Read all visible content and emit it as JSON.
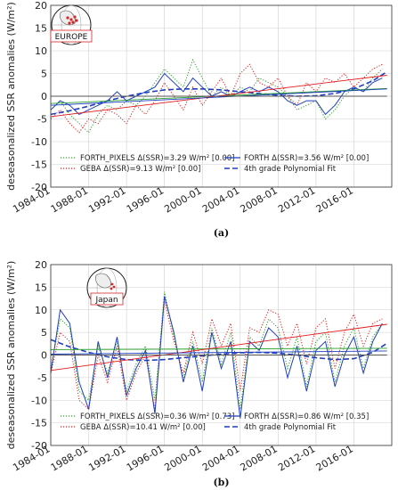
{
  "chart_data": [
    {
      "type": "line",
      "panel_label": "(a)",
      "region_label": "EUROPE",
      "ylabel": "deseasonalized SSR anomalies (W/m²)",
      "ylim": [
        -20,
        20
      ],
      "yticks": [
        20,
        15,
        10,
        5,
        0,
        -5,
        -10,
        -15,
        -20
      ],
      "xlim": [
        1984,
        2020
      ],
      "xticks": [
        "1984-01",
        "1988-01",
        "1992-01",
        "1996-01",
        "2000-01",
        "2004-01",
        "2008-01",
        "2012-01",
        "2016-01"
      ],
      "grid": true,
      "legend_position": "bottom",
      "legend": [
        {
          "text": "FORTH_PIXELS Δ(SSR)=3.29 W/m² [0.00]",
          "color": "#2ca02c",
          "style": "dotted"
        },
        {
          "text": "GEBA Δ(SSR)=9.13 W/m² [0.00]",
          "color": "#e41a1c",
          "style": "dotted"
        },
        {
          "text": "FORTH Δ(SSR)=3.56 W/m² [0.00]",
          "color": "#1f3fbf",
          "style": "solid"
        },
        {
          "text": "4th grade Polynomial Fit",
          "color": "#1f3fbf",
          "style": "dashed"
        }
      ],
      "series": [
        {
          "name": "FORTH_PIXELS",
          "color": "#2ca02c",
          "style": "dotted",
          "x": [
            1984,
            1985,
            1986,
            1987,
            1988,
            1989,
            1990,
            1991,
            1992,
            1993,
            1994,
            1995,
            1996,
            1997,
            1998,
            1999,
            2000,
            2001,
            2002,
            2003,
            2004,
            2005,
            2006,
            2007,
            2008,
            2009,
            2010,
            2011,
            2012,
            2013,
            2014,
            2015,
            2016,
            2017,
            2018,
            2019
          ],
          "y": [
            -3,
            -1,
            -4,
            -6,
            -8,
            -4,
            -2,
            -3,
            -1,
            -2,
            0,
            3,
            6,
            4,
            2,
            8,
            4,
            0,
            2,
            0,
            2,
            1,
            4,
            3,
            2,
            0,
            -3,
            -2,
            -1,
            -5,
            -3,
            0,
            2,
            1,
            4,
            6
          ]
        },
        {
          "name": "GEBA",
          "color": "#e41a1c",
          "style": "dotted",
          "x": [
            1984,
            1985,
            1986,
            1987,
            1988,
            1989,
            1990,
            1991,
            1992,
            1993,
            1994,
            1995,
            1996,
            1997,
            1998,
            1999,
            2000,
            2001,
            2002,
            2003,
            2004,
            2005,
            2006,
            2007,
            2008,
            2009,
            2010,
            2011,
            2012,
            2013,
            2014,
            2015,
            2016,
            2017,
            2018,
            2019
          ],
          "y": [
            -5,
            -3,
            -6,
            -8,
            -5,
            -6,
            -3,
            -4,
            -6,
            -2,
            -4,
            -1,
            3,
            0,
            -3,
            2,
            -2,
            1,
            4,
            0,
            5,
            7,
            3,
            2,
            4,
            0,
            -2,
            3,
            1,
            4,
            3,
            5,
            2,
            4,
            6,
            7
          ]
        },
        {
          "name": "FORTH",
          "color": "#1f3fbf",
          "style": "solid",
          "x": [
            1984,
            1985,
            1986,
            1987,
            1988,
            1989,
            1990,
            1991,
            1992,
            1993,
            1994,
            1995,
            1996,
            1997,
            1998,
            1999,
            2000,
            2001,
            2002,
            2003,
            2004,
            2005,
            2006,
            2007,
            2008,
            2009,
            2010,
            2011,
            2012,
            2013,
            2014,
            2015,
            2016,
            2017,
            2018,
            2019
          ],
          "y": [
            -3,
            -1,
            -2,
            -4,
            -3,
            -2,
            -1,
            1,
            -1,
            0,
            1,
            2,
            5,
            3,
            1,
            4,
            2,
            0,
            1,
            0,
            1,
            2,
            1,
            2,
            1,
            -1,
            -2,
            -1,
            -1,
            -4,
            -2,
            1,
            2,
            1,
            3,
            4
          ]
        },
        {
          "name": "4th grade Polynomial Fit",
          "color": "#1f3fbf",
          "style": "dashed",
          "x": [
            1984,
            1986,
            1988,
            1990,
            1992,
            1994,
            1996,
            1998,
            2000,
            2002,
            2004,
            2006,
            2008,
            2010,
            2012,
            2014,
            2016,
            2018,
            2019.5
          ],
          "y": [
            -4,
            -3.2,
            -2.2,
            -1,
            0,
            0.8,
            1.4,
            1.6,
            1.6,
            1.4,
            1.0,
            0.6,
            0.2,
            0.0,
            0.1,
            0.6,
            1.6,
            3.4,
            5.4
          ]
        },
        {
          "name": "FORTH_PIXELS trend",
          "color": "#2ca02c",
          "style": "solid",
          "x": [
            1984,
            2019.5
          ],
          "y": [
            -1.6,
            1.7
          ]
        },
        {
          "name": "GEBA trend",
          "color": "#e41a1c",
          "style": "solid",
          "x": [
            1984,
            2019.5
          ],
          "y": [
            -4.5,
            4.6
          ]
        },
        {
          "name": "FORTH trend",
          "color": "#1f3fbf",
          "style": "solid",
          "x": [
            1984,
            2019.5
          ],
          "y": [
            -2.0,
            1.6
          ]
        },
        {
          "name": "zero line",
          "color": "#555555",
          "style": "solid",
          "x": [
            1984,
            2019.5
          ],
          "y": [
            0,
            0
          ]
        }
      ]
    },
    {
      "type": "line",
      "panel_label": "(b)",
      "region_label": "Japan",
      "ylabel": "deseasonalized SSR anomalies (W/m²)",
      "ylim": [
        -20,
        20
      ],
      "yticks": [
        20,
        15,
        10,
        5,
        0,
        -5,
        -10,
        -15,
        -20
      ],
      "xlim": [
        1984,
        2020
      ],
      "xticks": [
        "1984-01",
        "1988-01",
        "1992-01",
        "1996-01",
        "2000-01",
        "2004-01",
        "2008-01",
        "2012-01",
        "2016-01"
      ],
      "grid": true,
      "legend_position": "bottom",
      "legend": [
        {
          "text": "FORTH_PIXELS Δ(SSR)=0.36 W/m² [0.73]",
          "color": "#2ca02c",
          "style": "dotted"
        },
        {
          "text": "GEBA Δ(SSR)=10.41 W/m² [0.00]",
          "color": "#e41a1c",
          "style": "dotted"
        },
        {
          "text": "FORTH Δ(SSR)=0.86 W/m² [0.35]",
          "color": "#1f3fbf",
          "style": "solid"
        },
        {
          "text": "4th grade Polynomial Fit",
          "color": "#1f3fbf",
          "style": "dashed"
        }
      ],
      "series": [
        {
          "name": "FORTH_PIXELS",
          "color": "#2ca02c",
          "style": "dotted",
          "x": [
            1984,
            1985,
            1986,
            1987,
            1988,
            1989,
            1990,
            1991,
            1992,
            1993,
            1994,
            1995,
            1996,
            1997,
            1998,
            1999,
            2000,
            2001,
            2002,
            2003,
            2004,
            2005,
            2006,
            2007,
            2008,
            2009,
            2010,
            2011,
            2012,
            2013,
            2014,
            2015,
            2016,
            2017,
            2018,
            2019
          ],
          "y": [
            -3,
            8,
            6,
            -8,
            -10,
            2,
            -4,
            3,
            -8,
            -2,
            2,
            -10,
            14,
            4,
            -5,
            3,
            -6,
            6,
            -2,
            5,
            -12,
            4,
            2,
            8,
            6,
            -3,
            4,
            -7,
            3,
            5,
            -6,
            2,
            6,
            -3,
            4,
            7
          ]
        },
        {
          "name": "GEBA",
          "color": "#e41a1c",
          "style": "dotted",
          "x": [
            1984,
            1985,
            1986,
            1987,
            1988,
            1989,
            1990,
            1991,
            1992,
            1993,
            1994,
            1995,
            1996,
            1997,
            1998,
            1999,
            2000,
            2001,
            2002,
            2003,
            2004,
            2005,
            2006,
            2007,
            2008,
            2009,
            2010,
            2011,
            2012,
            2013,
            2014,
            2015,
            2016,
            2017,
            2018,
            2019
          ],
          "y": [
            -4,
            5,
            3,
            -10,
            -12,
            0,
            -6,
            2,
            -10,
            -4,
            0,
            -12,
            12,
            3,
            -4,
            5,
            -2,
            8,
            2,
            7,
            -8,
            6,
            5,
            10,
            9,
            2,
            7,
            -2,
            6,
            8,
            -3,
            5,
            9,
            2,
            7,
            8
          ]
        },
        {
          "name": "FORTH",
          "color": "#1f3fbf",
          "style": "solid",
          "x": [
            1984,
            1985,
            1986,
            1987,
            1988,
            1989,
            1990,
            1991,
            1992,
            1993,
            1994,
            1995,
            1996,
            1997,
            1998,
            1999,
            2000,
            2001,
            2002,
            2003,
            2004,
            2005,
            2006,
            2007,
            2008,
            2009,
            2010,
            2011,
            2012,
            2013,
            2014,
            2015,
            2016,
            2017,
            2018,
            2019
          ],
          "y": [
            -4,
            10,
            7,
            -6,
            -12,
            3,
            -5,
            4,
            -9,
            -3,
            1,
            -13,
            13,
            5,
            -6,
            2,
            -8,
            5,
            -3,
            3,
            -14,
            3,
            1,
            6,
            4,
            -5,
            2,
            -8,
            1,
            3,
            -7,
            0,
            4,
            -4,
            3,
            7
          ]
        },
        {
          "name": "4th grade Polynomial Fit",
          "color": "#1f3fbf",
          "style": "dashed",
          "x": [
            1984,
            1986,
            1988,
            1990,
            1992,
            1994,
            1996,
            1998,
            2000,
            2002,
            2004,
            2006,
            2008,
            2010,
            2012,
            2014,
            2016,
            2018,
            2019.5
          ],
          "y": [
            3.4,
            1.8,
            0.6,
            -0.4,
            -1.0,
            -1.2,
            -1.0,
            -0.6,
            -0.2,
            0.2,
            0.5,
            0.6,
            0.4,
            0.0,
            -0.6,
            -1.0,
            -0.8,
            0.6,
            2.6
          ]
        },
        {
          "name": "FORTH_PIXELS trend",
          "color": "#2ca02c",
          "style": "solid",
          "x": [
            1984,
            2019.5
          ],
          "y": [
            1.2,
            1.5
          ]
        },
        {
          "name": "GEBA trend",
          "color": "#e41a1c",
          "style": "solid",
          "x": [
            1984,
            2019.5
          ],
          "y": [
            -3.4,
            6.8
          ]
        },
        {
          "name": "FORTH trend",
          "color": "#1f3fbf",
          "style": "solid",
          "x": [
            1984,
            2019.5
          ],
          "y": [
            0.2,
            0.9
          ]
        },
        {
          "name": "zero line",
          "color": "#555555",
          "style": "solid",
          "x": [
            1984,
            2019.5
          ],
          "y": [
            0,
            0
          ]
        }
      ]
    }
  ]
}
